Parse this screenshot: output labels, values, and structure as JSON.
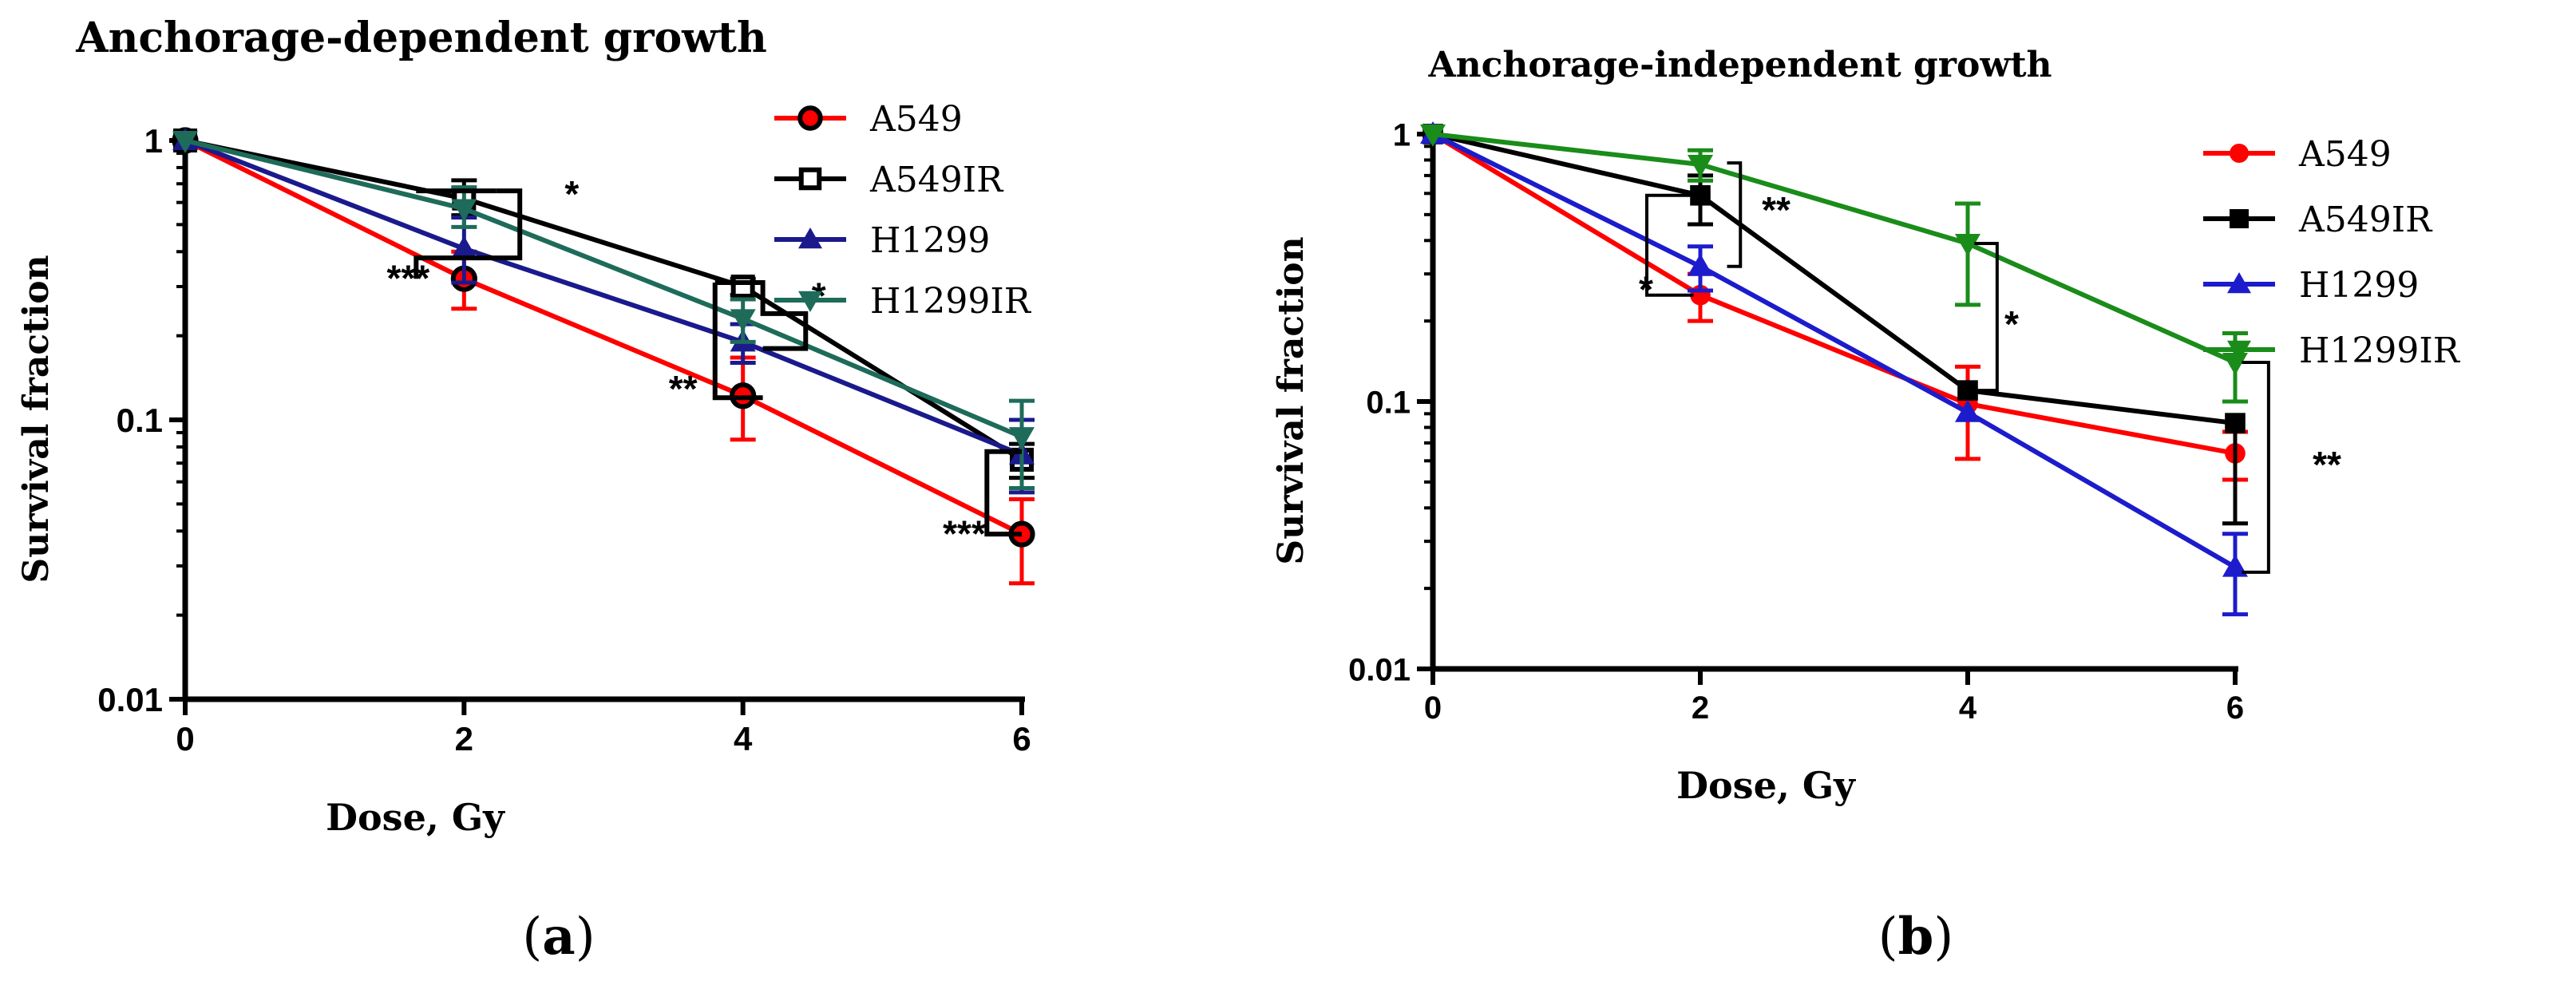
{
  "figure_labels": [
    {
      "open": "(",
      "letter": "a",
      "close": ")"
    },
    {
      "open": "(",
      "letter": "b",
      "close": ")"
    }
  ],
  "chart_data": [
    {
      "type": "line",
      "title": "Anchorage-dependent growth",
      "xlabel": "Dose, Gy",
      "ylabel": "Survival fraction",
      "yscale": "log",
      "ylim": [
        0.01,
        1
      ],
      "xlim": [
        0,
        6
      ],
      "xticks": [
        "0",
        "2",
        "4",
        "6"
      ],
      "yticks": [
        "0.01",
        "0.1",
        "1"
      ],
      "legend_position": "top-right",
      "x": [
        0,
        2,
        4,
        6
      ],
      "series": [
        {
          "name": "A549",
          "color": "#ff0000",
          "marker": "circle-open-red",
          "values": [
            1,
            0.32,
            0.122,
            0.039
          ],
          "err_up": [
            0,
            0.08,
            0.045,
            0.013
          ],
          "err_down": [
            0,
            0.07,
            0.037,
            0.013
          ]
        },
        {
          "name": "A549IR",
          "color": "#000000",
          "marker": "square-open",
          "values": [
            1,
            0.62,
            0.3,
            0.072
          ],
          "err_up": [
            0,
            0.1,
            0.02,
            0.01
          ],
          "err_down": [
            0,
            0.08,
            0.02,
            0.01
          ]
        },
        {
          "name": "H1299",
          "color": "#1a1a8c",
          "marker": "triangle-up",
          "values": [
            1,
            0.41,
            0.19,
            0.075
          ],
          "err_up": [
            0,
            0.12,
            0.03,
            0.025
          ],
          "err_down": [
            0,
            0.1,
            0.03,
            0.02
          ]
        },
        {
          "name": "H1299IR",
          "color": "#1e6b5a",
          "marker": "triangle-down",
          "values": [
            1,
            0.57,
            0.23,
            0.087
          ],
          "err_up": [
            0,
            0.11,
            0.04,
            0.03
          ],
          "err_down": [
            0,
            0.08,
            0.04,
            0.03
          ]
        }
      ],
      "annotations": [
        {
          "text": "*",
          "x": 2,
          "y": 0.58
        },
        {
          "text": "***",
          "x": 2,
          "y": 0.33
        },
        {
          "text": "*",
          "x": 4,
          "y": 0.25
        },
        {
          "text": "**",
          "x": 4,
          "y": 0.14
        },
        {
          "text": "***",
          "x": 6,
          "y": 0.043
        }
      ]
    },
    {
      "type": "line",
      "title": "Anchorage-independent growth",
      "xlabel": "Dose, Gy",
      "ylabel": "Survival fraction",
      "yscale": "log",
      "ylim": [
        0.01,
        1
      ],
      "xlim": [
        0,
        6
      ],
      "xticks": [
        "0",
        "2",
        "4",
        "6"
      ],
      "yticks": [
        "0.01",
        "0.1",
        "1"
      ],
      "legend_position": "top-right",
      "x": [
        0,
        2,
        4,
        6
      ],
      "series": [
        {
          "name": "A549",
          "color": "#ff0000",
          "marker": "circle",
          "values": [
            1,
            0.25,
            0.098,
            0.064
          ],
          "err_up": [
            0,
            0.05,
            0.037,
            0.013
          ],
          "err_down": [
            0,
            0.05,
            0.037,
            0.013
          ]
        },
        {
          "name": "A549IR",
          "color": "#000000",
          "marker": "square",
          "values": [
            1,
            0.59,
            0.11,
            0.083
          ],
          "err_up": [
            0,
            0.11,
            0.0,
            0.0
          ],
          "err_down": [
            0,
            0.13,
            0.0,
            0.048
          ]
        },
        {
          "name": "H1299",
          "color": "#1c1ccc",
          "marker": "triangle-up",
          "values": [
            1,
            0.32,
            0.091,
            0.024
          ],
          "err_up": [
            0,
            0.06,
            0.0,
            0.008
          ],
          "err_down": [
            0,
            0.06,
            0.0,
            0.008
          ]
        },
        {
          "name": "H1299IR",
          "color": "#1a8c1a",
          "marker": "triangle-down",
          "values": [
            1,
            0.77,
            0.39,
            0.14
          ],
          "err_up": [
            0,
            0.1,
            0.16,
            0.04
          ],
          "err_down": [
            0,
            0.1,
            0.16,
            0.04
          ]
        }
      ],
      "annotations": [
        {
          "text": "**",
          "x": 2,
          "y": 0.5
        },
        {
          "text": "*",
          "x": 2,
          "y": 0.27
        },
        {
          "text": "*",
          "x": 4,
          "y": 0.2
        },
        {
          "text": "**",
          "x": 6,
          "y": 0.064
        }
      ]
    }
  ]
}
